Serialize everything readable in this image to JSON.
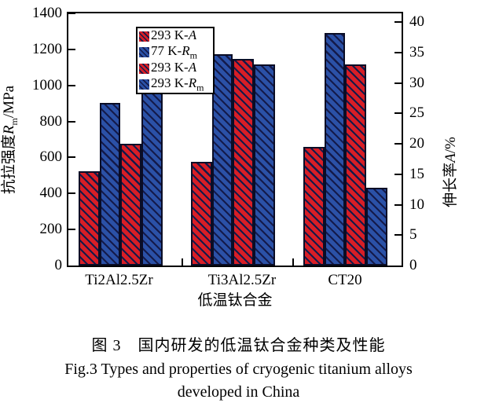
{
  "chart_data": {
    "type": "bar",
    "categories": [
      "Ti2Al2.5Zr",
      "Ti3Al2.5Zr",
      "CT20"
    ],
    "series": [
      {
        "name": "293 K-A",
        "axis": "right",
        "unit": "%",
        "color": "#d81e26",
        "values": [
          15.5,
          17,
          19.5
        ]
      },
      {
        "name": "77 K-Rm",
        "axis": "left",
        "unit": "MPa",
        "color": "#2b51a7",
        "values": [
          905,
          1175,
          1290
        ]
      },
      {
        "name": "293 K-A",
        "axis": "right",
        "unit": "%",
        "color": "#d81e26",
        "values": [
          20,
          34,
          33
        ]
      },
      {
        "name": "293 K-Rm",
        "axis": "left",
        "unit": "MPa",
        "color": "#2b51a7",
        "values": [
          1290,
          1115,
          430
        ]
      }
    ],
    "left_axis": {
      "label": "抗拉强度Rm/MPa",
      "min": 0,
      "max": 1400,
      "ticks": [
        "0",
        "200",
        "400",
        "600",
        "800",
        "1000",
        "1200",
        "1400"
      ]
    },
    "right_axis": {
      "label": "伸长率A/%",
      "min": 0,
      "max": 40,
      "ticks": [
        "0",
        "5",
        "10",
        "15",
        "20",
        "25",
        "30",
        "35",
        "40"
      ]
    },
    "xlabel": "低温钛合金",
    "hatch": {
      "direction": "\\",
      "color": "#141a4a"
    },
    "legend_position": "top-left",
    "grid": false
  },
  "legend": {
    "items": [
      {
        "pre": "293 K-",
        "var": "A",
        "sub": ""
      },
      {
        "pre": "77 K-",
        "var": "R",
        "sub": "m"
      },
      {
        "pre": "293 K-",
        "var": "A",
        "sub": ""
      },
      {
        "pre": "293 K-",
        "var": "R",
        "sub": "m"
      }
    ]
  },
  "axis_titles": {
    "left": {
      "pre": "抗拉强度",
      "var": "R",
      "sub": "m",
      "post": "/MPa"
    },
    "right": {
      "pre": "伸长率",
      "var": "A",
      "sub": "",
      "post": "/%"
    },
    "x": "低温钛合金"
  },
  "caption": {
    "zh": "图 3　国内研发的低温钛合金种类及性能",
    "en_line1": "Fig.3 Types and properties of cryogenic titanium alloys",
    "en_line2": "developed in China"
  }
}
